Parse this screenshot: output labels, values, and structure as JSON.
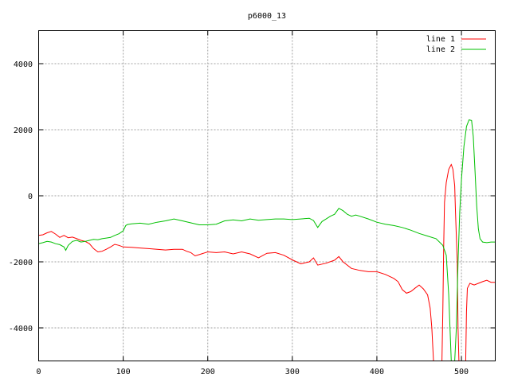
{
  "chart_data": {
    "type": "line",
    "title": "p6000_13",
    "xlabel": "",
    "ylabel": "",
    "xlim": [
      0,
      540
    ],
    "ylim": [
      -5000,
      5000
    ],
    "x_ticks": [
      0,
      100,
      200,
      300,
      400,
      500
    ],
    "y_ticks": [
      -4000,
      -2000,
      0,
      2000,
      4000
    ],
    "x_tick_labels": [
      "0",
      "100",
      "200",
      "300",
      "400",
      "500"
    ],
    "y_tick_labels": [
      "-4000",
      "-2000",
      "0",
      "2000",
      "4000"
    ],
    "grid": true,
    "legend_position": "top-right",
    "series": [
      {
        "name": "line 1",
        "color": "#ff0000",
        "points": [
          [
            0,
            -1200
          ],
          [
            5,
            -1180
          ],
          [
            10,
            -1120
          ],
          [
            15,
            -1080
          ],
          [
            20,
            -1160
          ],
          [
            25,
            -1260
          ],
          [
            30,
            -1200
          ],
          [
            35,
            -1270
          ],
          [
            40,
            -1250
          ],
          [
            45,
            -1300
          ],
          [
            50,
            -1350
          ],
          [
            55,
            -1380
          ],
          [
            60,
            -1450
          ],
          [
            65,
            -1600
          ],
          [
            70,
            -1700
          ],
          [
            75,
            -1680
          ],
          [
            80,
            -1620
          ],
          [
            85,
            -1550
          ],
          [
            90,
            -1470
          ],
          [
            95,
            -1500
          ],
          [
            100,
            -1550
          ],
          [
            110,
            -1560
          ],
          [
            120,
            -1580
          ],
          [
            130,
            -1600
          ],
          [
            140,
            -1620
          ],
          [
            150,
            -1640
          ],
          [
            160,
            -1620
          ],
          [
            170,
            -1620
          ],
          [
            175,
            -1680
          ],
          [
            180,
            -1720
          ],
          [
            185,
            -1820
          ],
          [
            190,
            -1780
          ],
          [
            200,
            -1700
          ],
          [
            210,
            -1720
          ],
          [
            220,
            -1700
          ],
          [
            230,
            -1760
          ],
          [
            240,
            -1700
          ],
          [
            250,
            -1760
          ],
          [
            260,
            -1880
          ],
          [
            270,
            -1740
          ],
          [
            280,
            -1720
          ],
          [
            290,
            -1800
          ],
          [
            300,
            -1940
          ],
          [
            310,
            -2060
          ],
          [
            320,
            -2000
          ],
          [
            325,
            -1880
          ],
          [
            330,
            -2100
          ],
          [
            340,
            -2040
          ],
          [
            350,
            -1950
          ],
          [
            355,
            -1840
          ],
          [
            360,
            -2000
          ],
          [
            370,
            -2200
          ],
          [
            380,
            -2260
          ],
          [
            390,
            -2300
          ],
          [
            400,
            -2300
          ],
          [
            410,
            -2380
          ],
          [
            420,
            -2500
          ],
          [
            425,
            -2600
          ],
          [
            430,
            -2840
          ],
          [
            435,
            -2950
          ],
          [
            440,
            -2900
          ],
          [
            445,
            -2800
          ],
          [
            450,
            -2700
          ],
          [
            455,
            -2820
          ],
          [
            460,
            -3000
          ],
          [
            463,
            -3400
          ],
          [
            465,
            -4000
          ],
          [
            467,
            -5000
          ],
          [
            477,
            -5000
          ],
          [
            478,
            -3500
          ],
          [
            479,
            -1500
          ],
          [
            480,
            -200
          ],
          [
            482,
            400
          ],
          [
            485,
            800
          ],
          [
            488,
            950
          ],
          [
            490,
            800
          ],
          [
            492,
            300
          ],
          [
            493,
            -500
          ],
          [
            495,
            -2000
          ],
          [
            496,
            -4000
          ],
          [
            497,
            -5000
          ],
          [
            505,
            -5000
          ],
          [
            506,
            -3500
          ],
          [
            507,
            -2800
          ],
          [
            510,
            -2650
          ],
          [
            515,
            -2700
          ],
          [
            520,
            -2650
          ],
          [
            525,
            -2600
          ],
          [
            530,
            -2560
          ],
          [
            535,
            -2620
          ],
          [
            540,
            -2620
          ]
        ]
      },
      {
        "name": "line 2",
        "color": "#00c000",
        "points": [
          [
            0,
            -1450
          ],
          [
            5,
            -1420
          ],
          [
            10,
            -1380
          ],
          [
            15,
            -1400
          ],
          [
            20,
            -1450
          ],
          [
            25,
            -1480
          ],
          [
            30,
            -1550
          ],
          [
            32,
            -1650
          ],
          [
            35,
            -1500
          ],
          [
            40,
            -1380
          ],
          [
            45,
            -1350
          ],
          [
            50,
            -1400
          ],
          [
            55,
            -1380
          ],
          [
            60,
            -1350
          ],
          [
            65,
            -1320
          ],
          [
            70,
            -1330
          ],
          [
            75,
            -1300
          ],
          [
            80,
            -1280
          ],
          [
            85,
            -1260
          ],
          [
            90,
            -1200
          ],
          [
            95,
            -1150
          ],
          [
            100,
            -1060
          ],
          [
            103,
            -900
          ],
          [
            105,
            -870
          ],
          [
            110,
            -850
          ],
          [
            120,
            -830
          ],
          [
            130,
            -860
          ],
          [
            140,
            -800
          ],
          [
            150,
            -760
          ],
          [
            160,
            -700
          ],
          [
            170,
            -760
          ],
          [
            180,
            -820
          ],
          [
            190,
            -880
          ],
          [
            200,
            -880
          ],
          [
            210,
            -860
          ],
          [
            220,
            -760
          ],
          [
            230,
            -730
          ],
          [
            240,
            -760
          ],
          [
            250,
            -700
          ],
          [
            260,
            -740
          ],
          [
            270,
            -720
          ],
          [
            280,
            -700
          ],
          [
            290,
            -700
          ],
          [
            300,
            -720
          ],
          [
            310,
            -700
          ],
          [
            320,
            -680
          ],
          [
            325,
            -750
          ],
          [
            330,
            -960
          ],
          [
            335,
            -780
          ],
          [
            340,
            -700
          ],
          [
            345,
            -620
          ],
          [
            350,
            -560
          ],
          [
            355,
            -380
          ],
          [
            360,
            -450
          ],
          [
            365,
            -560
          ],
          [
            370,
            -620
          ],
          [
            375,
            -580
          ],
          [
            380,
            -620
          ],
          [
            390,
            -700
          ],
          [
            400,
            -800
          ],
          [
            410,
            -860
          ],
          [
            420,
            -900
          ],
          [
            430,
            -960
          ],
          [
            440,
            -1040
          ],
          [
            450,
            -1140
          ],
          [
            460,
            -1220
          ],
          [
            470,
            -1300
          ],
          [
            478,
            -1500
          ],
          [
            482,
            -1800
          ],
          [
            485,
            -3000
          ],
          [
            488,
            -5000
          ],
          [
            492,
            -5000
          ],
          [
            494,
            -4000
          ],
          [
            496,
            -2000
          ],
          [
            498,
            -500
          ],
          [
            500,
            500
          ],
          [
            503,
            1500
          ],
          [
            506,
            2100
          ],
          [
            509,
            2300
          ],
          [
            512,
            2280
          ],
          [
            514,
            1800
          ],
          [
            516,
            800
          ],
          [
            518,
            -300
          ],
          [
            520,
            -1000
          ],
          [
            522,
            -1300
          ],
          [
            525,
            -1400
          ],
          [
            530,
            -1420
          ],
          [
            535,
            -1400
          ],
          [
            540,
            -1400
          ]
        ]
      }
    ]
  }
}
